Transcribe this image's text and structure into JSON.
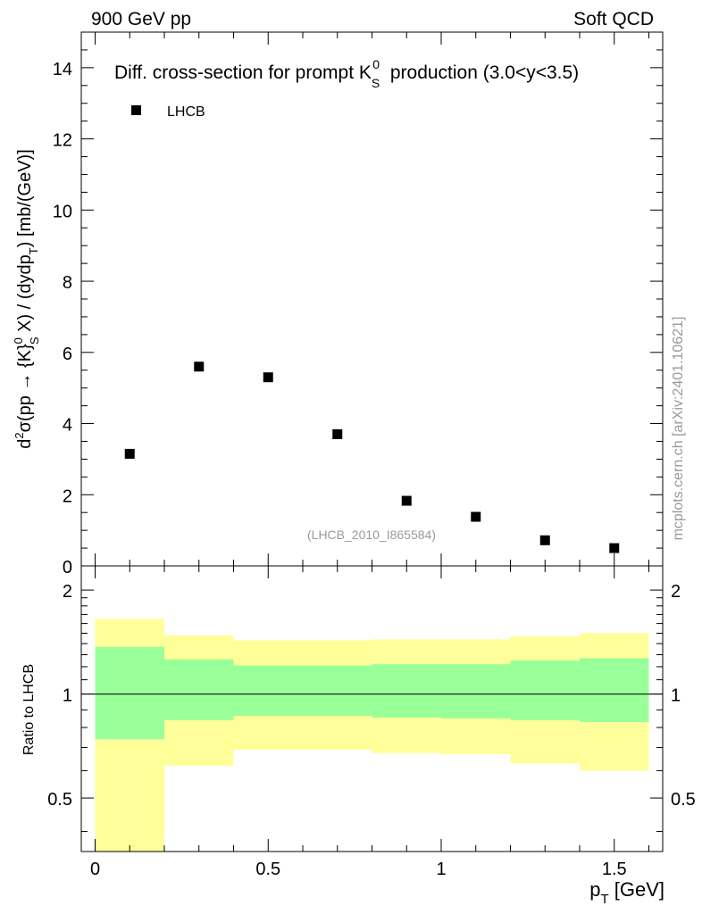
{
  "header": {
    "left": "900 GeV pp",
    "right": "Soft QCD"
  },
  "side_label": "mcplots.cern.ch [arXiv:2401.10621]",
  "colors": {
    "outer_band": "#ffff99",
    "inner_band": "#99ff99",
    "markers": "#000000"
  },
  "chart_data": [
    {
      "type": "scatter",
      "panel": "main",
      "title_parts": [
        "Diff. cross-section for prompt K",
        "S",
        "0",
        " production (3.0<y<3.5)"
      ],
      "ylabel": "d²σ(pp → {K}⁰_S X) / (dydp_T) [mb/(GeV)]",
      "ylabel_parts": [
        "d",
        "2",
        "σ(pp → {K}",
        "0",
        "S",
        " X) / (dydp",
        "T",
        ") [mb/(GeV)]"
      ],
      "xlim": [
        -0.04,
        1.64
      ],
      "ylim": [
        0,
        15
      ],
      "yticks": [
        0,
        2,
        4,
        6,
        8,
        10,
        12,
        14
      ],
      "ytick_labels": [
        "0",
        "2",
        "4",
        "6",
        "8",
        "10",
        "12",
        "14"
      ],
      "legend": {
        "label": "LHCB",
        "placement": "top-left"
      },
      "annotation": "(LHCB_2010_I865584)",
      "series": [
        {
          "name": "LHCB",
          "x": [
            0.1,
            0.3,
            0.5,
            0.7,
            0.9,
            1.1,
            1.3,
            1.5
          ],
          "y": [
            3.15,
            5.6,
            5.3,
            3.7,
            1.83,
            1.38,
            0.72,
            0.5
          ]
        }
      ]
    },
    {
      "type": "area",
      "panel": "ratio",
      "ylabel": "Ratio to LHCB",
      "xlabel": "p_T [GeV]",
      "xlabel_parts": [
        "p",
        "T",
        " [GeV]"
      ],
      "xlim": [
        -0.04,
        1.64
      ],
      "ylim": [
        0.35,
        2.35
      ],
      "yscale": "log",
      "yticks": [
        0.5,
        1,
        2
      ],
      "ytick_labels": [
        "0.5",
        "1",
        "2"
      ],
      "xticks": [
        0,
        0.5,
        1,
        1.5
      ],
      "xtick_labels": [
        "0",
        "0.5",
        "1",
        "1.5"
      ],
      "reference_line": 1,
      "bins": [
        {
          "xlo": 0.0,
          "xhi": 0.2,
          "outer": [
            0.35,
            1.65
          ],
          "inner": [
            0.74,
            1.37
          ]
        },
        {
          "xlo": 0.2,
          "xhi": 0.4,
          "outer": [
            0.62,
            1.48
          ],
          "inner": [
            0.84,
            1.26
          ]
        },
        {
          "xlo": 0.4,
          "xhi": 0.6,
          "outer": [
            0.69,
            1.43
          ],
          "inner": [
            0.865,
            1.21
          ]
        },
        {
          "xlo": 0.6,
          "xhi": 0.8,
          "outer": [
            0.69,
            1.43
          ],
          "inner": [
            0.865,
            1.21
          ]
        },
        {
          "xlo": 0.8,
          "xhi": 1.0,
          "outer": [
            0.675,
            1.44
          ],
          "inner": [
            0.855,
            1.22
          ]
        },
        {
          "xlo": 1.0,
          "xhi": 1.2,
          "outer": [
            0.67,
            1.44
          ],
          "inner": [
            0.85,
            1.22
          ]
        },
        {
          "xlo": 1.2,
          "xhi": 1.4,
          "outer": [
            0.63,
            1.47
          ],
          "inner": [
            0.84,
            1.25
          ]
        },
        {
          "xlo": 1.4,
          "xhi": 1.6,
          "outer": [
            0.6,
            1.5
          ],
          "inner": [
            0.83,
            1.27
          ]
        }
      ]
    }
  ]
}
